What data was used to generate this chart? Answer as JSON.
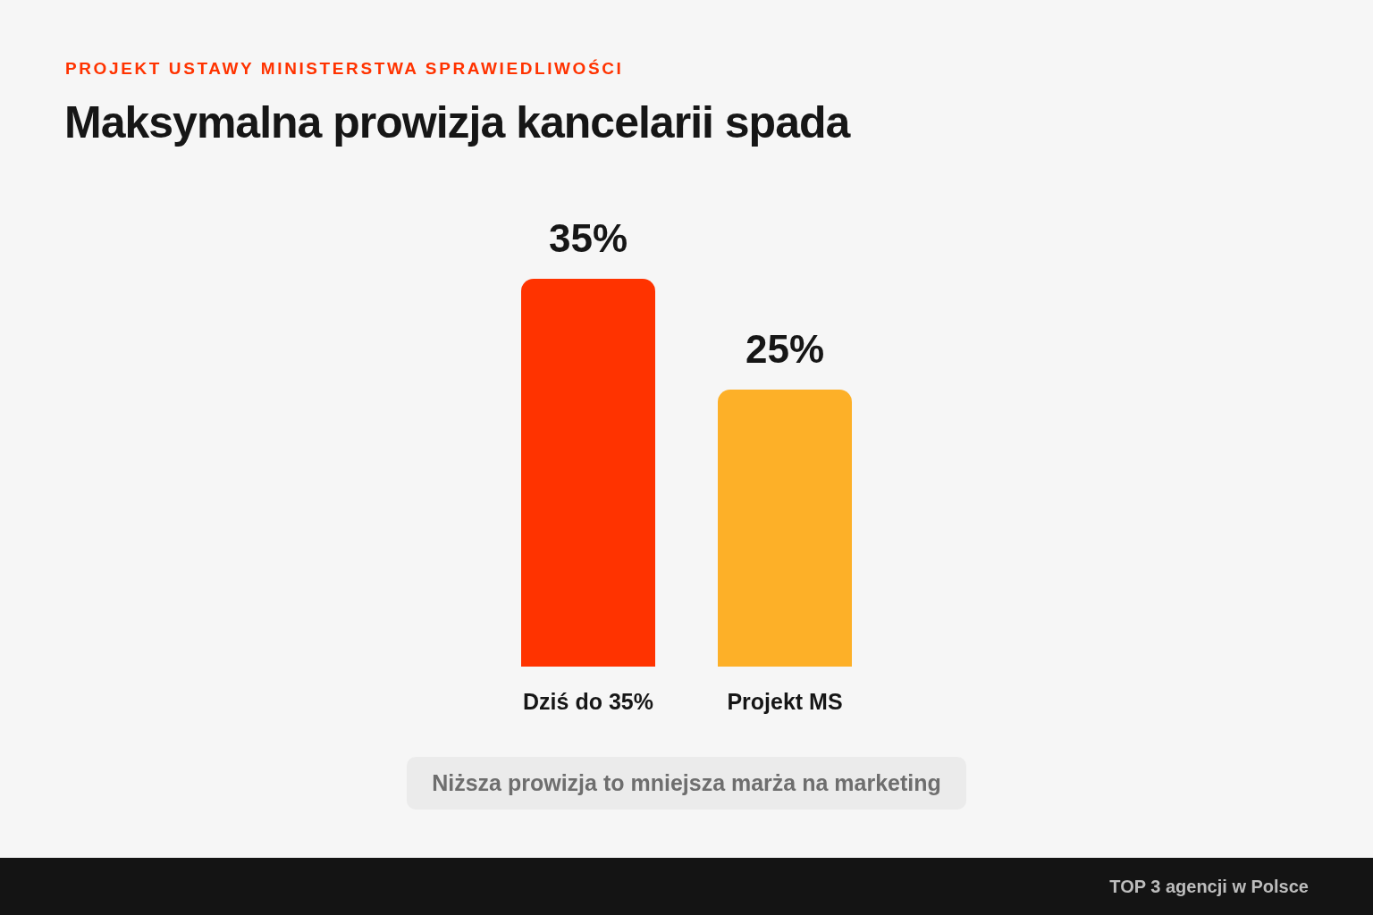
{
  "chart_data": {
    "type": "bar",
    "subtitle": "PROJEKT USTAWY MINISTERSTWA SPRAWIEDLIWOŚCI",
    "title": "Maksymalna prowizja kancelarii spada",
    "categories": [
      "Dziś do 35%",
      "Projekt MS"
    ],
    "values": [
      35,
      25
    ],
    "colors": [
      "#ff3300",
      "#fdb028"
    ],
    "value_labels": [
      "35%",
      "25%"
    ],
    "annotations": [
      "Niższa prowizja to mniejsza marża na marketing",
      "TOP 3 agencji w Polsce"
    ]
  }
}
